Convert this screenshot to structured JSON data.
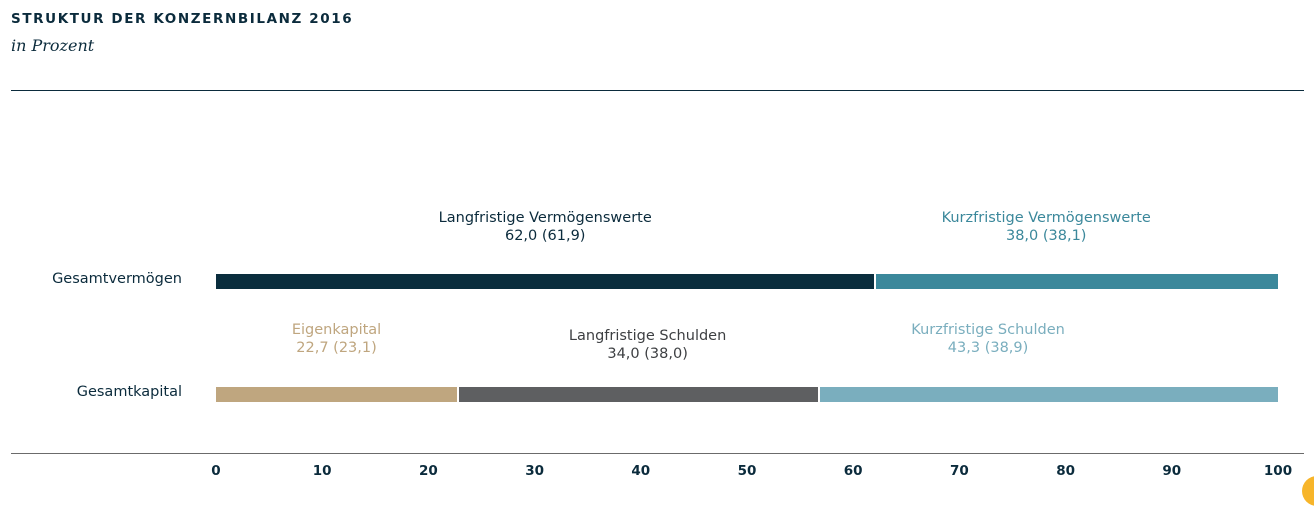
{
  "header": {
    "title": "STRUKTUR DER KONZERNBILANZ 2016",
    "subtitle": "in Prozent"
  },
  "rows": [
    {
      "label": "Gesamtvermögen",
      "segments": [
        {
          "name": "Langfristige Vermögenswerte",
          "value_text": "62,0 (61,9)",
          "value": 62.0,
          "prior": 61.9,
          "color": "#0a2d3d",
          "label_color": "#0b2b3c"
        },
        {
          "name": "Kurzfristige Vermögenswerte",
          "value_text": "38,0 (38,1)",
          "value": 38.0,
          "prior": 38.1,
          "color": "#3b889b",
          "label_color": "#3b889b"
        }
      ]
    },
    {
      "label": "Gesamtkapital",
      "segments": [
        {
          "name": "Eigenkapital",
          "value_text": "22,7 (23,1)",
          "value": 22.7,
          "prior": 23.1,
          "color": "#bfa67f",
          "label_color": "#bfa67f"
        },
        {
          "name": "Langfristige Schulden",
          "value_text": "34,0 (38,0)",
          "value": 34.0,
          "prior": 38.0,
          "color": "#5e5f61",
          "label_color": "#3d3f42"
        },
        {
          "name": "Kurzfristige Schulden",
          "value_text": "43,3 (38,9)",
          "value": 43.3,
          "prior": 38.9,
          "color": "#7aaebe",
          "label_color": "#7aaebe"
        }
      ]
    }
  ],
  "axis": {
    "ticks": [
      "0",
      "10",
      "20",
      "30",
      "40",
      "50",
      "60",
      "70",
      "80",
      "90",
      "100"
    ]
  },
  "chart_data": {
    "type": "bar",
    "orientation": "horizontal",
    "stacked": true,
    "title": "STRUKTUR DER KONZERNBILANZ 2016",
    "subtitle": "in Prozent",
    "xlabel": "",
    "ylabel": "",
    "xlim": [
      0,
      100
    ],
    "x_ticks": [
      0,
      10,
      20,
      30,
      40,
      50,
      60,
      70,
      80,
      90,
      100
    ],
    "categories": [
      "Gesamtvermögen",
      "Gesamtkapital"
    ],
    "series": [
      {
        "category": "Gesamtvermögen",
        "name": "Langfristige Vermögenswerte",
        "value": 62.0,
        "prior_year": 61.9,
        "color": "#0a2d3d"
      },
      {
        "category": "Gesamtvermögen",
        "name": "Kurzfristige Vermögenswerte",
        "value": 38.0,
        "prior_year": 38.1,
        "color": "#3b889b"
      },
      {
        "category": "Gesamtkapital",
        "name": "Eigenkapital",
        "value": 22.7,
        "prior_year": 23.1,
        "color": "#bfa67f"
      },
      {
        "category": "Gesamtkapital",
        "name": "Langfristige Schulden",
        "value": 34.0,
        "prior_year": 38.0,
        "color": "#5e5f61"
      },
      {
        "category": "Gesamtkapital",
        "name": "Kurzfristige Schulden",
        "value": 43.3,
        "prior_year": 38.9,
        "color": "#7aaebe"
      }
    ],
    "grid": false,
    "legend": "inline labels above bar segments",
    "annotation_format": "value (prior year value)"
  }
}
